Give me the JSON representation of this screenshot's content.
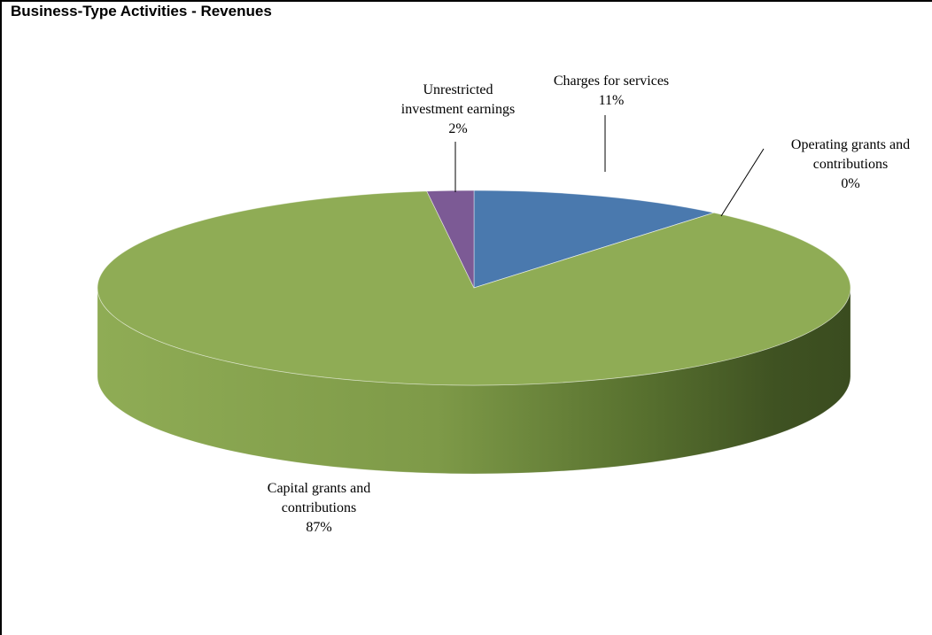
{
  "chart_data": {
    "type": "pie",
    "title": "Business-Type Activities - Revenues",
    "slices": [
      {
        "name": "Charges for services",
        "value": 11,
        "color": "#4a79ae",
        "label_lines": [
          "Charges for services"
        ],
        "pct": "11%"
      },
      {
        "name": "Operating grants and contributions",
        "value": 0,
        "color": "#b04745",
        "label_lines": [
          "Operating grants and",
          "contributions"
        ],
        "pct": "0%"
      },
      {
        "name": "Capital grants and contributions",
        "value": 87,
        "color": "#8fac55",
        "label_lines": [
          "Capital grants and",
          "contributions"
        ],
        "pct": "87%"
      },
      {
        "name": "Unrestricted investment earnings",
        "value": 2,
        "color": "#7c5a95",
        "label_lines": [
          "Unrestricted",
          "investment earnings"
        ],
        "pct": "2%"
      }
    ],
    "style": "3d"
  }
}
